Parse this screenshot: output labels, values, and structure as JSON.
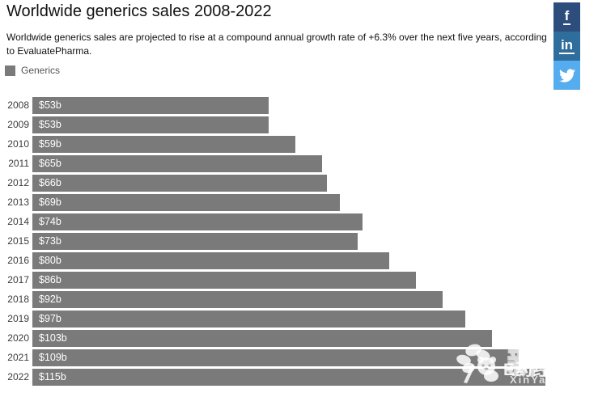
{
  "header": {
    "title": "Worldwide generics sales 2008-2022",
    "subtitle": "Worldwide generics sales are projected to rise at a compound annual growth rate of +6.3% over the next five years, according to EvaluatePharma.",
    "legend_label": "Generics"
  },
  "chart_data": {
    "type": "bar",
    "orientation": "horizontal",
    "title": "Worldwide generics sales 2008-2022",
    "series_name": "Generics",
    "categories": [
      "2008",
      "2009",
      "2010",
      "2011",
      "2012",
      "2013",
      "2014",
      "2015",
      "2016",
      "2017",
      "2018",
      "2019",
      "2020",
      "2021",
      "2022"
    ],
    "values": [
      53,
      53,
      59,
      65,
      66,
      69,
      74,
      73,
      80,
      86,
      92,
      97,
      103,
      109,
      115
    ],
    "labels": [
      "$53b",
      "$53b",
      "$59b",
      "$65b",
      "$66b",
      "$69b",
      "$74b",
      "$73b",
      "$80b",
      "$86b",
      "$92b",
      "$97b",
      "$103b",
      "$109b",
      "$115b"
    ],
    "unit": "$b",
    "bar_color": "#7a7a7a",
    "grid": false,
    "legend_position": "top-left"
  },
  "social": {
    "facebook": {
      "label": "f",
      "color": "#2d4e7c"
    },
    "linkedin": {
      "label": "in",
      "color": "#2e6d9c"
    },
    "twitter": {
      "color": "#55acee"
    }
  },
  "watermark": {
    "outline_text": "新药汇",
    "brand_text": "E药经理人",
    "site_text": "XinYaoHui.com"
  }
}
